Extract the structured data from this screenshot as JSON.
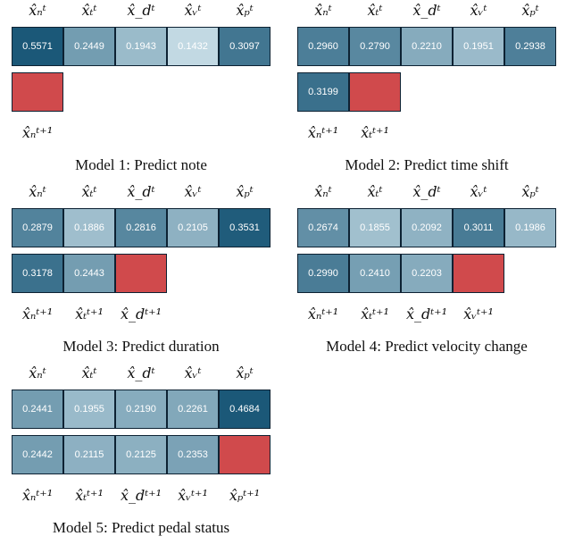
{
  "panels": [
    {
      "caption": "Model 1: Predict note",
      "top_labels": [
        "x̂ₙᵗ",
        "x̂ₜᵗ",
        "x̂_dᵗ",
        "x̂ᵥᵗ",
        "x̂ₚᵗ"
      ],
      "row1": [
        "0.5571",
        "0.2449",
        "0.1943",
        "0.1432",
        "0.3097"
      ],
      "row2": [],
      "bottom_labels": [
        "x̂ₙᵗ⁺¹"
      ]
    },
    {
      "caption": "Model 2: Predict time shift",
      "top_labels": [
        "x̂ₙᵗ",
        "x̂ₜᵗ",
        "x̂_dᵗ",
        "x̂ᵥᵗ",
        "x̂ₚᵗ"
      ],
      "row1": [
        "0.2960",
        "0.2790",
        "0.2210",
        "0.1951",
        "0.2938"
      ],
      "row2": [
        "0.3199"
      ],
      "bottom_labels": [
        "x̂ₙᵗ⁺¹",
        "x̂ₜᵗ⁺¹"
      ]
    },
    {
      "caption": "Model 3: Predict duration",
      "top_labels": [
        "x̂ₙᵗ",
        "x̂ₜᵗ",
        "x̂_dᵗ",
        "x̂ᵥᵗ",
        "x̂ₚᵗ"
      ],
      "row1": [
        "0.2879",
        "0.1886",
        "0.2816",
        "0.2105",
        "0.3531"
      ],
      "row2": [
        "0.3178",
        "0.2443"
      ],
      "bottom_labels": [
        "x̂ₙᵗ⁺¹",
        "x̂ₜᵗ⁺¹",
        "x̂_dᵗ⁺¹"
      ]
    },
    {
      "caption": "Model 4: Predict velocity change",
      "top_labels": [
        "x̂ₙᵗ",
        "x̂ₜᵗ",
        "x̂_dᵗ",
        "x̂ᵥᵗ",
        "x̂ₚᵗ"
      ],
      "row1": [
        "0.2674",
        "0.1855",
        "0.2092",
        "0.3011",
        "0.1986"
      ],
      "row2": [
        "0.2990",
        "0.2410",
        "0.2203"
      ],
      "bottom_labels": [
        "x̂ₙᵗ⁺¹",
        "x̂ₜᵗ⁺¹",
        "x̂_dᵗ⁺¹",
        "x̂ᵥᵗ⁺¹"
      ]
    },
    {
      "caption": "Model 5: Predict pedal status",
      "top_labels": [
        "x̂ₙᵗ",
        "x̂ₜᵗ",
        "x̂_dᵗ",
        "x̂ᵥᵗ",
        "x̂ₚᵗ"
      ],
      "row1": [
        "0.2441",
        "0.1955",
        "0.2190",
        "0.2261",
        "0.4684"
      ],
      "row2": [
        "0.2442",
        "0.2115",
        "0.2125",
        "0.2353"
      ],
      "bottom_labels": [
        "x̂ₙᵗ⁺¹",
        "x̂ₜᵗ⁺¹",
        "x̂_dᵗ⁺¹",
        "x̂ᵥᵗ⁺¹",
        "x̂ₚᵗ⁺¹"
      ]
    }
  ],
  "colors": {
    "target_cell": "#d04a4c",
    "high": "#1b5878",
    "low": "#c4dbe5",
    "border": "#0d2233"
  }
}
